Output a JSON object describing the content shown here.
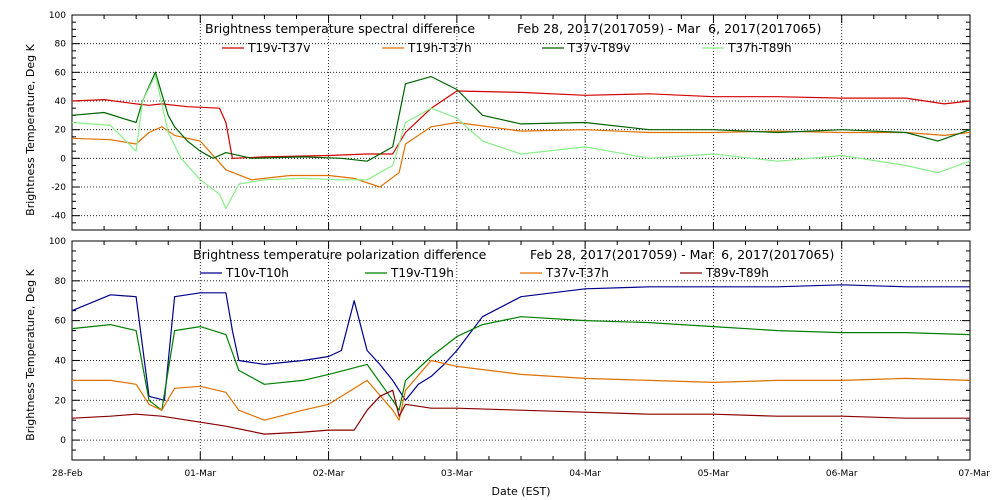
{
  "chart_data": [
    {
      "type": "line",
      "title": "Brightness temperature spectral difference",
      "date_range": "Feb 28, 2017(2017059) - Mar  6, 2017(2017065)",
      "xlabel": "",
      "ylabel": "Brightness Temperature, Deg K",
      "ylim": [
        -50,
        100
      ],
      "yticks": [
        -40,
        -20,
        0,
        20,
        40,
        60,
        80,
        100
      ],
      "xlim": [
        0,
        7
      ],
      "grid": true,
      "legend_position": "top",
      "series": [
        {
          "name": "T19v-T37v",
          "color": "#d40000",
          "x": [
            0,
            0.25,
            0.5,
            0.6,
            0.7,
            0.9,
            1.15,
            1.2,
            1.25,
            1.5,
            2.0,
            2.3,
            2.5,
            2.6,
            2.8,
            3.0,
            3.5,
            4.0,
            4.5,
            5.0,
            5.5,
            6.0,
            6.5,
            6.8,
            7.0
          ],
          "y": [
            40,
            41,
            38,
            37,
            38,
            36,
            35,
            25,
            0,
            1,
            2,
            3,
            3,
            18,
            35,
            47,
            46,
            44,
            45,
            43,
            43,
            42,
            42,
            38,
            40
          ]
        },
        {
          "name": "T19h-T37h",
          "color": "#e07000",
          "x": [
            0,
            0.3,
            0.5,
            0.6,
            0.7,
            0.8,
            0.9,
            1.0,
            1.2,
            1.4,
            1.7,
            2.0,
            2.2,
            2.4,
            2.55,
            2.6,
            2.8,
            3.0,
            3.5,
            4.0,
            4.5,
            5.0,
            5.5,
            6.0,
            6.5,
            6.8,
            7.0
          ],
          "y": [
            14,
            13,
            10,
            18,
            22,
            16,
            14,
            12,
            -8,
            -15,
            -12,
            -12,
            -14,
            -20,
            -10,
            10,
            22,
            25,
            19,
            20,
            18,
            18,
            19,
            18,
            18,
            16,
            18
          ]
        },
        {
          "name": "T37v-T89v",
          "color": "#006400",
          "x": [
            0,
            0.25,
            0.5,
            0.55,
            0.65,
            0.75,
            0.8,
            0.9,
            1.0,
            1.1,
            1.2,
            1.4,
            1.8,
            2.1,
            2.3,
            2.5,
            2.6,
            2.8,
            3.0,
            3.2,
            3.5,
            4.0,
            4.5,
            5.0,
            5.5,
            6.0,
            6.5,
            6.75,
            7.0
          ],
          "y": [
            30,
            32,
            25,
            40,
            60,
            30,
            22,
            12,
            5,
            0,
            4,
            0,
            1,
            0,
            -2,
            8,
            52,
            57,
            48,
            30,
            24,
            25,
            20,
            20,
            18,
            20,
            18,
            12,
            20
          ]
        },
        {
          "name": "T37h-T89h",
          "color": "#88ee88",
          "x": [
            0,
            0.3,
            0.5,
            0.55,
            0.65,
            0.75,
            0.85,
            1.0,
            1.15,
            1.2,
            1.3,
            1.5,
            1.8,
            2.1,
            2.3,
            2.5,
            2.6,
            2.8,
            3.0,
            3.2,
            3.5,
            4.0,
            4.5,
            5.0,
            5.5,
            6.0,
            6.5,
            6.75,
            7.0
          ],
          "y": [
            25,
            23,
            5,
            40,
            58,
            18,
            0,
            -15,
            -25,
            -35,
            -18,
            -15,
            -14,
            -15,
            -15,
            -5,
            25,
            35,
            28,
            12,
            3,
            8,
            0,
            3,
            -2,
            2,
            -5,
            -10,
            -2
          ]
        }
      ]
    },
    {
      "type": "line",
      "title": "Brightness temperature polarization difference",
      "date_range": "Feb 28, 2017(2017059) - Mar  6, 2017(2017065)",
      "xlabel": "Date (EST)",
      "ylabel": "Brightness Temperature, Deg K",
      "ylim": [
        -10,
        100
      ],
      "yticks": [
        0,
        20,
        40,
        60,
        80,
        100
      ],
      "xlim": [
        0,
        7
      ],
      "xtick_labels": [
        "28-Feb",
        "01-Mar",
        "02-Mar",
        "03-Mar",
        "04-Mar",
        "05-Mar",
        "06-Mar",
        "07-Mar"
      ],
      "grid": true,
      "legend_position": "top",
      "series": [
        {
          "name": "T10v-T10h",
          "color": "#00008b",
          "x": [
            0,
            0.3,
            0.5,
            0.6,
            0.72,
            0.8,
            1.0,
            1.2,
            1.25,
            1.3,
            1.5,
            1.8,
            2.0,
            2.1,
            2.2,
            2.3,
            2.4,
            2.5,
            2.6,
            2.7,
            2.8,
            2.9,
            3.0,
            3.2,
            3.5,
            4.0,
            4.5,
            5.0,
            5.5,
            6.0,
            6.5,
            7.0
          ],
          "y": [
            65,
            73,
            72,
            22,
            20,
            72,
            74,
            74,
            55,
            40,
            38,
            40,
            42,
            45,
            70,
            45,
            38,
            30,
            20,
            28,
            32,
            38,
            45,
            62,
            72,
            76,
            77,
            77,
            77,
            78,
            77,
            77
          ]
        },
        {
          "name": "T19v-T19h",
          "color": "#008000",
          "x": [
            0,
            0.3,
            0.5,
            0.6,
            0.7,
            0.8,
            1.0,
            1.2,
            1.3,
            1.5,
            1.8,
            2.0,
            2.3,
            2.5,
            2.55,
            2.6,
            2.8,
            3.0,
            3.2,
            3.5,
            4.0,
            4.5,
            5.0,
            5.5,
            6.0,
            6.5,
            7.0
          ],
          "y": [
            56,
            58,
            55,
            20,
            15,
            55,
            57,
            53,
            35,
            28,
            30,
            33,
            38,
            20,
            15,
            30,
            42,
            52,
            58,
            62,
            60,
            59,
            57,
            55,
            54,
            54,
            53
          ]
        },
        {
          "name": "T37v-T37h",
          "color": "#e07000",
          "x": [
            0,
            0.3,
            0.5,
            0.6,
            0.7,
            0.8,
            1.0,
            1.2,
            1.3,
            1.5,
            1.8,
            2.0,
            2.3,
            2.5,
            2.55,
            2.6,
            2.8,
            3.0,
            3.5,
            4.0,
            4.5,
            5.0,
            5.5,
            6.0,
            6.5,
            7.0
          ],
          "y": [
            30,
            30,
            28,
            18,
            15,
            26,
            27,
            24,
            15,
            10,
            15,
            18,
            30,
            15,
            10,
            25,
            40,
            37,
            33,
            31,
            30,
            29,
            30,
            30,
            31,
            30
          ]
        },
        {
          "name": "T89v-T89h",
          "color": "#8b0000",
          "x": [
            0,
            0.3,
            0.5,
            0.7,
            0.8,
            1.0,
            1.2,
            1.5,
            1.8,
            2.0,
            2.2,
            2.3,
            2.4,
            2.5,
            2.55,
            2.6,
            2.8,
            3.0,
            3.5,
            4.0,
            4.5,
            5.0,
            5.5,
            6.0,
            6.5,
            7.0
          ],
          "y": [
            11,
            12,
            13,
            12,
            11,
            9,
            7,
            3,
            4,
            5,
            5,
            15,
            22,
            25,
            12,
            18,
            16,
            16,
            15,
            14,
            13,
            13,
            12,
            12,
            11,
            11
          ]
        }
      ]
    }
  ]
}
